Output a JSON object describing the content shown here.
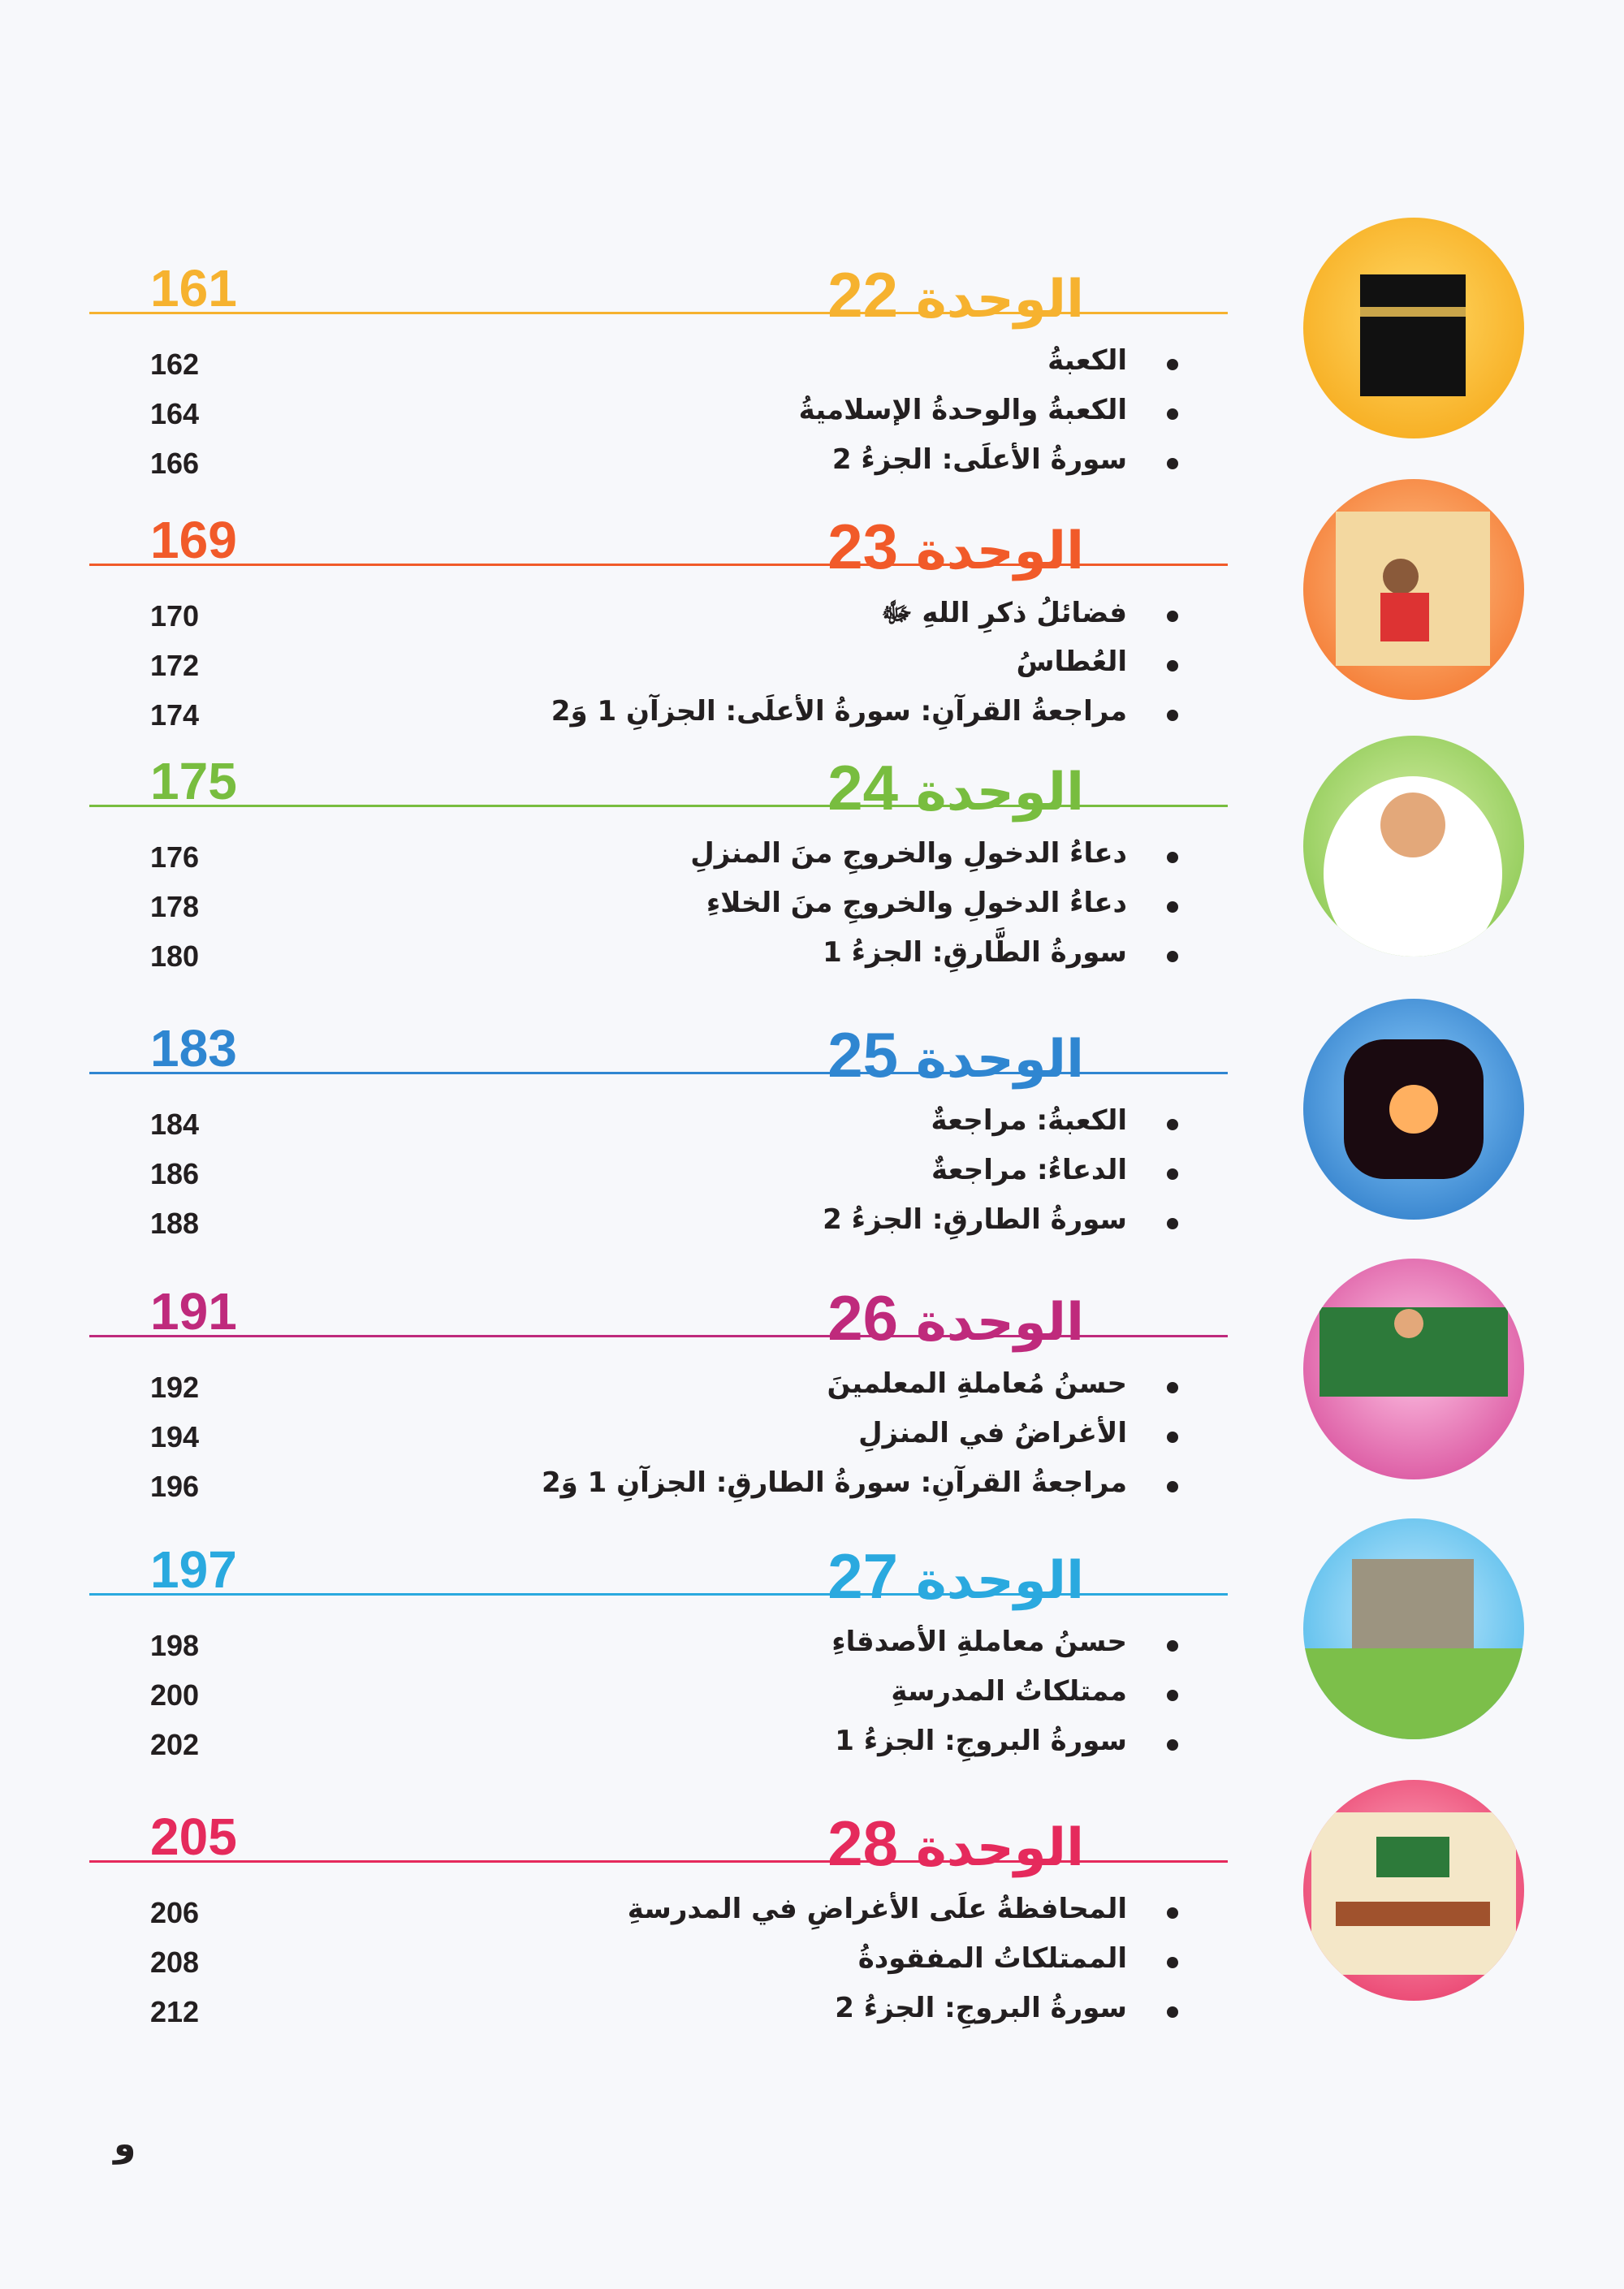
{
  "unit_word": "الوحدة",
  "units": [
    {
      "number": "22",
      "page": "161",
      "color": "#f6b22f",
      "items": [
        {
          "title": "الكعبةُ",
          "page": "162"
        },
        {
          "title": "الكعبةُ والوحدةُ الإسلاميةُ",
          "page": "164"
        },
        {
          "title": "سورةُ الأعلَى: الجزءُ 2",
          "page": "166"
        }
      ]
    },
    {
      "number": "23",
      "page": "169",
      "color": "#f15a29",
      "items": [
        {
          "title": "فضائلُ ذكرِ اللهِ ﷻ",
          "page": "170"
        },
        {
          "title": "العُطاسُ",
          "page": "172"
        },
        {
          "title": "مراجعةُ القرآنِ: سورةُ الأعلَى: الجزآنِ 1 وَ2",
          "page": "174"
        }
      ]
    },
    {
      "number": "24",
      "page": "175",
      "color": "#78bd3f",
      "items": [
        {
          "title": "دعاءُ الدخولِ والخروجِ منَ المنزلِ",
          "page": "176"
        },
        {
          "title": "دعاءُ الدخولِ والخروجِ منَ الخلاءِ",
          "page": "178"
        },
        {
          "title": "سورةُ الطَّارقِ: الجزءُ 1",
          "page": "180"
        }
      ]
    },
    {
      "number": "25",
      "page": "183",
      "color": "#2f86d1",
      "items": [
        {
          "title": "الكعبةُ: مراجعةٌ",
          "page": "184"
        },
        {
          "title": "الدعاءُ: مراجعةٌ",
          "page": "186"
        },
        {
          "title": "سورةُ الطارقِ: الجزءُ 2",
          "page": "188"
        }
      ]
    },
    {
      "number": "26",
      "page": "191",
      "color": "#bf2a7c",
      "items": [
        {
          "title": "حسنُ مُعاملةِ المعلمينَ",
          "page": "192"
        },
        {
          "title": "الأغراضُ في المنزلِ",
          "page": "194"
        },
        {
          "title": "مراجعةُ القرآنِ: سورةُ الطارقِ: الجزآنِ 1 وَ2",
          "page": "196"
        }
      ]
    },
    {
      "number": "27",
      "page": "197",
      "color": "#2aa9df",
      "items": [
        {
          "title": "حسنُ معاملةِ الأصدقاءِ",
          "page": "198"
        },
        {
          "title": "ممتلكاتُ المدرسةِ",
          "page": "200"
        },
        {
          "title": "سورةُ البروجِ: الجزءُ 1",
          "page": "202"
        }
      ]
    },
    {
      "number": "28",
      "page": "205",
      "color": "#e52a5c",
      "items": [
        {
          "title": "المحافظةُ علَى الأغراضِ في المدرسةِ",
          "page": "206"
        },
        {
          "title": "الممتلكاتُ المفقودةُ",
          "page": "208"
        },
        {
          "title": "سورةُ البروجِ: الجزءُ 2",
          "page": "212"
        }
      ]
    }
  ],
  "images": [
    "kaaba-image",
    "man-praying-image",
    "man-making-dua-image",
    "galaxy-image",
    "teacher-students-image",
    "school-playground-image",
    "classroom-image"
  ],
  "folio": "و"
}
